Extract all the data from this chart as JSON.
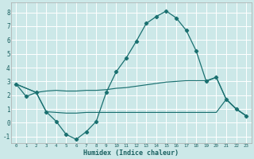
{
  "xlabel": "Humidex (Indice chaleur)",
  "bg_color": "#cce8e8",
  "grid_color": "#ffffff",
  "line_color": "#1a7070",
  "xlim": [
    -0.5,
    23.5
  ],
  "ylim": [
    -1.5,
    8.7
  ],
  "xticks": [
    0,
    1,
    2,
    3,
    4,
    5,
    6,
    7,
    8,
    9,
    10,
    11,
    12,
    13,
    14,
    15,
    16,
    17,
    18,
    19,
    20,
    21,
    22,
    23
  ],
  "yticks": [
    -1,
    0,
    1,
    2,
    3,
    4,
    5,
    6,
    7,
    8
  ],
  "line1_x": [
    0,
    1,
    2,
    3,
    4,
    5,
    6,
    7,
    8,
    9,
    10,
    11,
    12,
    13,
    14,
    15,
    16,
    17,
    18,
    19,
    20,
    21,
    22,
    23
  ],
  "line1_y": [
    2.8,
    1.9,
    2.2,
    0.8,
    0.1,
    -0.85,
    -1.2,
    -0.65,
    0.1,
    2.2,
    3.7,
    4.7,
    5.9,
    7.2,
    7.7,
    8.1,
    7.6,
    6.7,
    5.2,
    3.0,
    3.3,
    1.7,
    1.0,
    0.5
  ],
  "line2_x": [
    0,
    2,
    3,
    4,
    5,
    6,
    7,
    8,
    9,
    10,
    11,
    12,
    13,
    14,
    15,
    16,
    17,
    18,
    19,
    20,
    21,
    22,
    23
  ],
  "line2_y": [
    2.8,
    2.2,
    2.3,
    2.35,
    2.3,
    2.3,
    2.35,
    2.35,
    2.4,
    2.5,
    2.55,
    2.65,
    2.75,
    2.85,
    2.95,
    3.0,
    3.05,
    3.05,
    3.05,
    3.3,
    1.7,
    1.0,
    0.5
  ],
  "line3_x": [
    0,
    2,
    3,
    4,
    5,
    6,
    7,
    8,
    9,
    10,
    11,
    12,
    13,
    14,
    15,
    16,
    17,
    18,
    19,
    20,
    21,
    22,
    23
  ],
  "line3_y": [
    2.8,
    2.2,
    0.8,
    0.75,
    0.7,
    0.7,
    0.75,
    0.75,
    0.75,
    0.75,
    0.75,
    0.75,
    0.75,
    0.75,
    0.75,
    0.75,
    0.75,
    0.75,
    0.75,
    0.75,
    1.7,
    1.0,
    0.5
  ]
}
